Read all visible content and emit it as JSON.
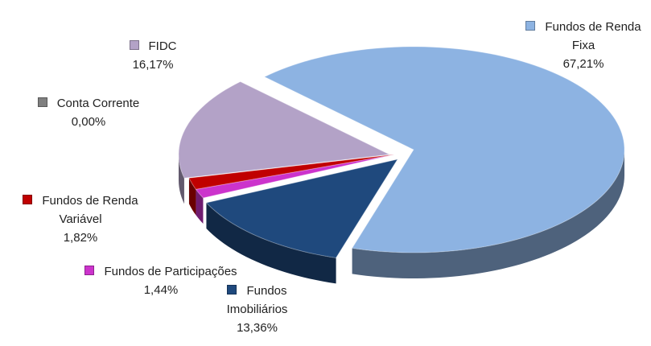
{
  "chart_data": {
    "type": "pie",
    "categories": [
      "Fundos de Renda Fixa",
      "Fundos Imobiliários",
      "Fundos de Participações",
      "Fundos de Renda Variável",
      "Conta Corrente",
      "FIDC"
    ],
    "values": [
      67.21,
      13.36,
      1.44,
      1.82,
      0.0,
      16.17
    ],
    "value_labels": [
      "67,21%",
      "13,36%",
      "1,44%",
      "1,82%",
      "0,00%",
      "16,17%"
    ],
    "colors": [
      "#8db3e2",
      "#1f497d",
      "#cc33cc",
      "#c00000",
      "#7f7f7f",
      "#b3a2c7"
    ]
  }
}
